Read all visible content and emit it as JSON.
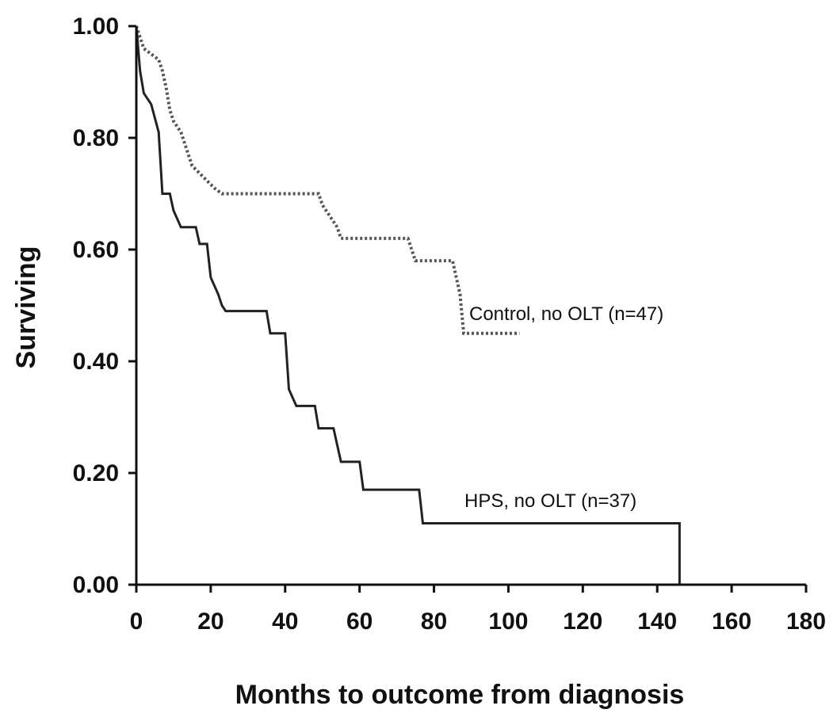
{
  "chart_data": {
    "type": "line",
    "title": "",
    "xlabel": "Months to outcome from diagnosis",
    "ylabel": "Surviving",
    "xlim": [
      0,
      180
    ],
    "ylim": [
      0,
      1
    ],
    "x_ticks": [
      "0",
      "20",
      "40",
      "60",
      "80",
      "100",
      "120",
      "140",
      "160",
      "180"
    ],
    "y_ticks": [
      "0.00",
      "0.20",
      "0.40",
      "0.60",
      "0.80",
      "1.00"
    ],
    "grid": false,
    "legend": "none",
    "series": [
      {
        "name": "Control, no OLT (n=47)",
        "line_style": "dotted",
        "color": "#555555",
        "points": [
          [
            0,
            1.0
          ],
          [
            1,
            0.98
          ],
          [
            2,
            0.96
          ],
          [
            6,
            0.94
          ],
          [
            7,
            0.92
          ],
          [
            8,
            0.89
          ],
          [
            9,
            0.85
          ],
          [
            10,
            0.83
          ],
          [
            12,
            0.81
          ],
          [
            13,
            0.79
          ],
          [
            14,
            0.77
          ],
          [
            15,
            0.75
          ],
          [
            18,
            0.73
          ],
          [
            21,
            0.71
          ],
          [
            23,
            0.7
          ],
          [
            49,
            0.7
          ],
          [
            50,
            0.68
          ],
          [
            52,
            0.66
          ],
          [
            54,
            0.64
          ],
          [
            55,
            0.62
          ],
          [
            73,
            0.62
          ],
          [
            74,
            0.6
          ],
          [
            75,
            0.58
          ],
          [
            85,
            0.58
          ],
          [
            86,
            0.55
          ],
          [
            87,
            0.52
          ],
          [
            88,
            0.45
          ],
          [
            103,
            0.45
          ]
        ]
      },
      {
        "name": "HPS, no OLT (n=37)",
        "line_style": "solid",
        "color": "#222222",
        "points": [
          [
            0,
            1.0
          ],
          [
            1,
            0.92
          ],
          [
            2,
            0.88
          ],
          [
            4,
            0.86
          ],
          [
            6,
            0.81
          ],
          [
            7,
            0.7
          ],
          [
            9,
            0.7
          ],
          [
            10,
            0.67
          ],
          [
            12,
            0.64
          ],
          [
            16,
            0.64
          ],
          [
            17,
            0.61
          ],
          [
            19,
            0.61
          ],
          [
            20,
            0.55
          ],
          [
            22,
            0.52
          ],
          [
            23,
            0.5
          ],
          [
            24,
            0.49
          ],
          [
            35,
            0.49
          ],
          [
            36,
            0.45
          ],
          [
            40,
            0.45
          ],
          [
            41,
            0.35
          ],
          [
            43,
            0.32
          ],
          [
            48,
            0.32
          ],
          [
            49,
            0.28
          ],
          [
            53,
            0.28
          ],
          [
            54,
            0.25
          ],
          [
            55,
            0.22
          ],
          [
            60,
            0.22
          ],
          [
            61,
            0.17
          ],
          [
            76,
            0.17
          ],
          [
            77,
            0.11
          ],
          [
            146,
            0.11
          ],
          [
            146,
            0.0
          ]
        ]
      }
    ],
    "annotations": {
      "control_label": "Control, no OLT (n=47)",
      "hps_label": "HPS, no OLT (n=37)"
    }
  }
}
